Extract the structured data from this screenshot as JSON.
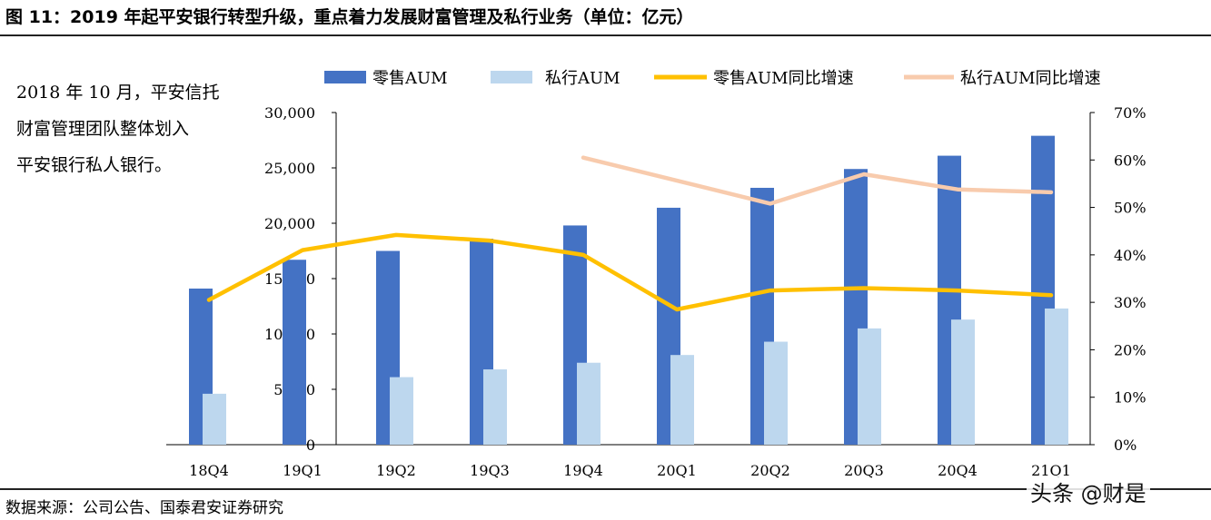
{
  "header": {
    "title": "图 11：2019 年起平安银行转型升级，重点着力发展财富管理及私行业务（单位：亿元）"
  },
  "note": {
    "lines": [
      "2018 年 10 月，平安信托",
      "财富管理团队整体划入",
      "平安银行私人银行。"
    ]
  },
  "footer": {
    "source": "数据来源：公司公告、国泰君安证券研究",
    "watermark": "头条 @财是"
  },
  "colors": {
    "retail_bar": "#4472C4",
    "private_bar": "#BDD7EE",
    "retail_line": "#FFC000",
    "private_line": "#F8CBAD"
  },
  "chart_data": {
    "type": "bar",
    "categories": [
      "18Q4",
      "19Q1",
      "19Q2",
      "19Q3",
      "19Q4",
      "20Q1",
      "20Q2",
      "20Q3",
      "20Q4",
      "21Q1"
    ],
    "series": [
      {
        "name": "零售AUM",
        "kind": "bar",
        "axis": "left",
        "values": [
          14100,
          16700,
          17500,
          18600,
          19800,
          21400,
          23200,
          24900,
          26100,
          27900
        ]
      },
      {
        "name": "私行AUM",
        "kind": "bar",
        "axis": "left",
        "values": [
          4600,
          null,
          6100,
          6800,
          7400,
          8100,
          9300,
          10500,
          11300,
          12300
        ]
      },
      {
        "name": "零售AUM同比增速",
        "kind": "line",
        "axis": "right",
        "values": [
          30.5,
          41,
          44.2,
          43,
          40,
          28.5,
          32.5,
          33,
          32.5,
          31.5
        ]
      },
      {
        "name": "私行AUM同比增速",
        "kind": "line",
        "axis": "right",
        "values": [
          null,
          null,
          null,
          null,
          60.5,
          null,
          50.8,
          57,
          53.8,
          53.2
        ]
      }
    ],
    "left_ticks": [
      "0",
      "5,000",
      "10,000",
      "15,000",
      "20,000",
      "25,000",
      "30,000"
    ],
    "right_ticks": [
      "0%",
      "10%",
      "20%",
      "30%",
      "40%",
      "50%",
      "60%",
      "70%"
    ],
    "ylim": [
      0,
      30000
    ],
    "y2lim": [
      0,
      70
    ],
    "legend_position": "top"
  }
}
